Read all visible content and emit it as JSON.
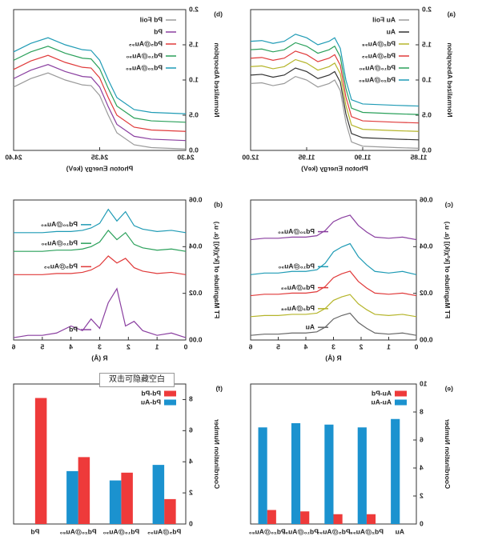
{
  "chart_data": [
    {
      "type": "line",
      "panel_label": "(a)",
      "x_label": "Photon Energy (keV)",
      "y_label": "Normalized Absorption",
      "legend": "upper left",
      "xlim": [
        11.85,
        12.0
      ],
      "xticks": [
        11.85,
        {
          "value": 11.9,
          "label": "11.90"
        },
        11.95,
        {
          "value": 12.0,
          "label": "12.00"
        }
      ],
      "ylim": [
        0,
        2
      ],
      "yticks": [
        {
          "value": 0,
          "label": "0.0"
        },
        0.5,
        {
          "value": 1,
          "label": "1.0"
        },
        1.5,
        {
          "value": 2,
          "label": "2.0"
        }
      ],
      "x": [
        11.85,
        11.87,
        11.9,
        11.91,
        11.915,
        11.92,
        11.925,
        11.93,
        11.94,
        11.95,
        11.96,
        11.97,
        11.98,
        11.99,
        12.0
      ],
      "series": [
        {
          "name": "Au Foil",
          "color": "#9a9a9a",
          "values": [
            0.03,
            0.04,
            0.06,
            0.12,
            0.4,
            0.85,
            1.0,
            0.95,
            0.9,
            1.0,
            1.05,
            0.95,
            0.92,
            0.96,
            0.95
          ]
        },
        {
          "name": "Au",
          "color": "#333333",
          "values": [
            0.15,
            0.16,
            0.18,
            0.24,
            0.52,
            0.97,
            1.12,
            1.07,
            1.02,
            1.12,
            1.17,
            1.07,
            1.04,
            1.08,
            1.07
          ]
        },
        {
          "name": "Pd₂@Au₉₈",
          "color": "#b5b52a",
          "values": [
            0.27,
            0.28,
            0.3,
            0.36,
            0.64,
            1.09,
            1.24,
            1.19,
            1.14,
            1.24,
            1.29,
            1.19,
            1.16,
            1.2,
            1.19
          ]
        },
        {
          "name": "Pd₅@Au₉₅",
          "color": "#e03a3a",
          "values": [
            0.39,
            0.4,
            0.42,
            0.48,
            0.76,
            1.21,
            1.36,
            1.31,
            1.26,
            1.36,
            1.41,
            1.31,
            1.28,
            1.32,
            1.31
          ]
        },
        {
          "name": "Pd₁₀@Au₉₀",
          "color": "#2aa05a",
          "values": [
            0.51,
            0.52,
            0.54,
            0.6,
            0.88,
            1.33,
            1.48,
            1.43,
            1.38,
            1.48,
            1.53,
            1.43,
            1.4,
            1.44,
            1.43
          ]
        },
        {
          "name": "Pd₂₀@Au₈₀",
          "color": "#1f9bb5",
          "values": [
            0.63,
            0.64,
            0.66,
            0.72,
            1.0,
            1.45,
            1.6,
            1.55,
            1.5,
            1.6,
            1.65,
            1.55,
            1.52,
            1.56,
            1.55
          ]
        }
      ]
    },
    {
      "type": "line",
      "panel_label": "(b)",
      "x_label": "Photon Energy (keV)",
      "y_label": "Normalized Absorption",
      "legend": "upper left",
      "xlim": [
        24.3,
        24.4
      ],
      "xticks": [
        {
          "value": 24.3,
          "label": "24.30"
        },
        24.35,
        {
          "value": 24.4,
          "label": "24.40"
        }
      ],
      "ylim": [
        0,
        2
      ],
      "yticks": [
        {
          "value": 0,
          "label": "0.0"
        },
        0.5,
        {
          "value": 1,
          "label": "1.0"
        },
        1.5,
        {
          "value": 2,
          "label": "2.0"
        }
      ],
      "x": [
        24.3,
        24.32,
        24.33,
        24.34,
        24.345,
        24.35,
        24.355,
        24.36,
        24.37,
        24.38,
        24.39,
        24.4
      ],
      "series": [
        {
          "name": "Pd Foil",
          "color": "#9a9a9a",
          "values": [
            0.02,
            0.04,
            0.08,
            0.25,
            0.5,
            0.78,
            0.92,
            0.93,
            1.0,
            1.1,
            1.02,
            0.9
          ]
        },
        {
          "name": "Pd",
          "color": "#8a3fa0",
          "values": [
            0.14,
            0.16,
            0.2,
            0.37,
            0.62,
            0.9,
            1.04,
            1.05,
            1.12,
            1.22,
            1.14,
            1.02
          ]
        },
        {
          "name": "Pd₅@Au₉₅",
          "color": "#e03a3a",
          "values": [
            0.27,
            0.29,
            0.33,
            0.5,
            0.75,
            1.03,
            1.17,
            1.18,
            1.25,
            1.35,
            1.27,
            1.15
          ]
        },
        {
          "name": "Pd₁₀@Au₉₀",
          "color": "#2aa05a",
          "values": [
            0.4,
            0.42,
            0.46,
            0.63,
            0.88,
            1.16,
            1.3,
            1.31,
            1.38,
            1.48,
            1.4,
            1.28
          ]
        },
        {
          "name": "Pd₂₀@Au₈₀",
          "color": "#1f9bb5",
          "values": [
            0.52,
            0.54,
            0.58,
            0.75,
            1.0,
            1.28,
            1.42,
            1.43,
            1.5,
            1.6,
            1.52,
            1.4
          ]
        }
      ]
    },
    {
      "type": "line",
      "panel_label": "(c)",
      "x_label": "R (Å)",
      "y_label": "FT Magnitude of [k²χ(k)] (a. u.)",
      "legend": "inline",
      "xlim": [
        0,
        6
      ],
      "xticks": [
        0,
        1,
        2,
        3,
        4,
        5,
        6
      ],
      "ylim": [
        0,
        0.06
      ],
      "yticks": [
        {
          "value": 0,
          "label": "0.00"
        },
        {
          "value": 0.02,
          "label": "0.02"
        },
        {
          "value": 0.04,
          "label": "0.04"
        },
        {
          "value": 0.06,
          "label": "0.06"
        }
      ],
      "x": [
        0,
        0.5,
        1,
        1.5,
        1.8,
        2.1,
        2.4,
        2.7,
        3.0,
        3.3,
        3.6,
        4,
        4.5,
        5,
        5.5,
        6
      ],
      "series": [
        {
          "name": "Au",
          "color": "#666666",
          "values": [
            0.002,
            0.003,
            0.0025,
            0.003,
            0.005,
            0.0075,
            0.0115,
            0.0105,
            0.009,
            0.0055,
            0.0035,
            0.003,
            0.003,
            0.0025,
            0.0025,
            0.002
          ]
        },
        {
          "name": "Pd₂@Au₉₈",
          "color": "#b5b52a",
          "values": [
            0.01,
            0.011,
            0.0105,
            0.011,
            0.013,
            0.0155,
            0.0195,
            0.0185,
            0.017,
            0.0135,
            0.0115,
            0.011,
            0.011,
            0.0105,
            0.0105,
            0.01
          ]
        },
        {
          "name": "Pd₅@Au₉₅",
          "color": "#e03a3a",
          "values": [
            0.019,
            0.0201,
            0.0196,
            0.0201,
            0.0223,
            0.0251,
            0.0295,
            0.0284,
            0.0267,
            0.0229,
            0.0207,
            0.0201,
            0.0201,
            0.0196,
            0.0196,
            0.019
          ]
        },
        {
          "name": "Pd₁₀@Au₉₀",
          "color": "#1f9bb5",
          "values": [
            0.028,
            0.0294,
            0.0287,
            0.0294,
            0.0322,
            0.0357,
            0.0413,
            0.0399,
            0.0378,
            0.0329,
            0.0301,
            0.0294,
            0.0294,
            0.0287,
            0.0287,
            0.028
          ]
        },
        {
          "name": "Pd₂₀@Au₈₀",
          "color": "#8a3fa0",
          "values": [
            0.043,
            0.0441,
            0.0436,
            0.0441,
            0.0463,
            0.0491,
            0.0535,
            0.0524,
            0.0507,
            0.0469,
            0.0447,
            0.0441,
            0.0441,
            0.0436,
            0.0436,
            0.043
          ]
        }
      ]
    },
    {
      "type": "line",
      "panel_label": "(d)",
      "x_label": "R (Å)",
      "y_label": "FT Magnitude of [k²χ(k)] (a. u.)",
      "legend": "inline",
      "xlim": [
        0,
        6
      ],
      "xticks": [
        0,
        1,
        2,
        3,
        4,
        5,
        6
      ],
      "ylim": [
        0,
        0.06
      ],
      "yticks": [
        {
          "value": 0,
          "label": "0.00"
        },
        {
          "value": 0.02,
          "label": "0.02"
        },
        {
          "value": 0.04,
          "label": "0.04"
        },
        {
          "value": 0.06,
          "label": "0.06"
        }
      ],
      "x": [
        0,
        0.5,
        1,
        1.5,
        1.8,
        2.1,
        2.4,
        2.7,
        3.0,
        3.3,
        3.6,
        4,
        4.5,
        5,
        5.5,
        6
      ],
      "series": [
        {
          "name": "Pd",
          "color": "#8a3fa0",
          "values": [
            0.001,
            0.003,
            0.002,
            0.004,
            0.008,
            0.006,
            0.022,
            0.016,
            0.005,
            0.009,
            0.004,
            0.006,
            0.003,
            0.002,
            0.002,
            0.001
          ]
        },
        {
          "name": "Pd₅@Au₉₅",
          "color": "#e03a3a",
          "values": [
            0.028,
            0.029,
            0.0285,
            0.0295,
            0.031,
            0.035,
            0.033,
            0.036,
            0.032,
            0.03,
            0.029,
            0.0285,
            0.0285,
            0.028,
            0.028,
            0.028
          ]
        },
        {
          "name": "Pd₁₀@Au₉₀",
          "color": "#2aa05a",
          "values": [
            0.038,
            0.039,
            0.0385,
            0.0395,
            0.041,
            0.046,
            0.043,
            0.047,
            0.042,
            0.04,
            0.039,
            0.0385,
            0.0385,
            0.038,
            0.038,
            0.038
          ]
        },
        {
          "name": "Pd₂₀@Au₈₀",
          "color": "#1f9bb5",
          "values": [
            0.046,
            0.047,
            0.0465,
            0.0475,
            0.049,
            0.055,
            0.051,
            0.056,
            0.05,
            0.048,
            0.047,
            0.0465,
            0.0465,
            0.046,
            0.046,
            0.046
          ]
        }
      ]
    },
    {
      "type": "bar",
      "panel_label": "(e)",
      "y_label": "Coordination Number",
      "legend": "upper left",
      "ylim": [
        0,
        10
      ],
      "yticks": [
        0,
        2,
        4,
        6,
        8,
        10
      ],
      "categories": [
        "Au",
        "Pd₂@Au₉₈",
        "Pd₅@Au₉₅",
        "Pd₁₀@Au₉₀",
        "Pd₂₀@Au₈₀"
      ],
      "series": [
        {
          "name": "Au-Pd",
          "color": "#ee3a3a",
          "values": [
            null,
            0.7,
            0.7,
            0.9,
            1.0
          ]
        },
        {
          "name": "Au-Au",
          "color": "#1b92cf",
          "values": [
            7.5,
            6.9,
            7.1,
            7.2,
            6.9
          ]
        }
      ]
    },
    {
      "type": "bar",
      "panel_label": "(f)",
      "y_label": "Coordination Number",
      "legend": "upper left",
      "ylim": [
        0,
        9
      ],
      "yticks": [
        0,
        2,
        4,
        6,
        8
      ],
      "categories": [
        "Pd₅@Au₉₅",
        "Pd₁₀@Au₉₀",
        "Pd₂₀@Au₈₀",
        "Pd"
      ],
      "series": [
        {
          "name": "Pd-Pd",
          "color": "#ee3a3a",
          "values": [
            1.6,
            3.3,
            4.3,
            8.1
          ]
        },
        {
          "name": "Pd-Au",
          "color": "#1b92cf",
          "values": [
            3.8,
            2.8,
            3.4,
            null
          ]
        }
      ]
    }
  ],
  "tooltip": "双击可隐藏空白"
}
